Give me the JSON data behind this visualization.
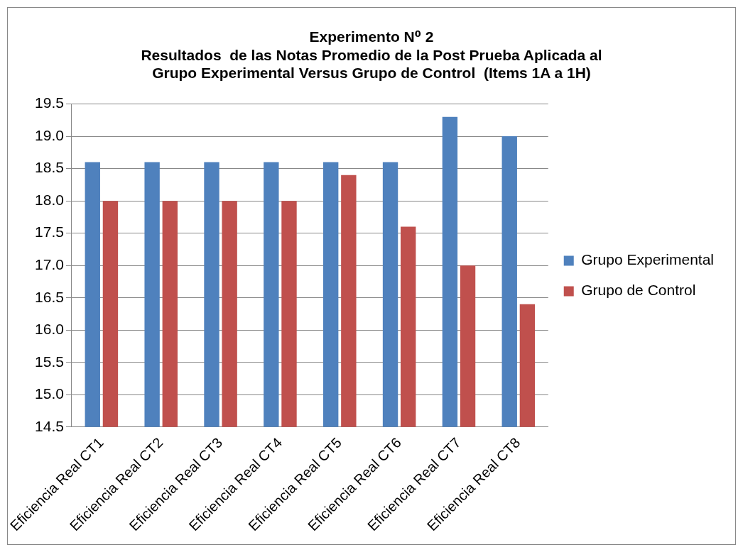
{
  "chart_data": {
    "type": "bar",
    "title": "Experimento N⁰ 2\nResultados  de las Notas Promedio de la Post Prueba Aplicada al\nGrupo Experimental Versus Grupo de Control  (Items 1A a 1H)",
    "categories": [
      "Eficiencia Real CT1",
      "Eficiencia Real CT2",
      "Eficiencia Real CT3",
      "Eficiencia Real CT4",
      "Eficiencia Real CT5",
      "Eficiencia Real CT6",
      "Eficiencia Real CT7",
      "Eficiencia Real CT8"
    ],
    "series": [
      {
        "name": "Grupo Experimental",
        "color": "#4f81bd",
        "values": [
          18.6,
          18.6,
          18.6,
          18.6,
          18.6,
          18.6,
          19.3,
          19.0
        ]
      },
      {
        "name": "Grupo de Control",
        "color": "#c0504d",
        "values": [
          18.0,
          18.0,
          18.0,
          18.0,
          18.4,
          17.6,
          17.0,
          16.4
        ]
      }
    ],
    "ylim": [
      14.5,
      19.5
    ],
    "yticks": [
      {
        "value": 14.5,
        "label": "14.5"
      },
      {
        "value": 15,
        "label": "15.0"
      },
      {
        "value": 15.5,
        "label": "15.5"
      },
      {
        "value": 16,
        "label": "16.0"
      },
      {
        "value": 16.5,
        "label": "16.5"
      },
      {
        "value": 17,
        "label": "17.0"
      },
      {
        "value": 17.5,
        "label": "17.5"
      },
      {
        "value": 18,
        "label": "18.0"
      },
      {
        "value": 18.5,
        "label": "18.5"
      },
      {
        "value": 19,
        "label": "19.0"
      },
      {
        "value": 19.5,
        "label": "19.5"
      }
    ],
    "grid": "y",
    "legend": "right"
  }
}
